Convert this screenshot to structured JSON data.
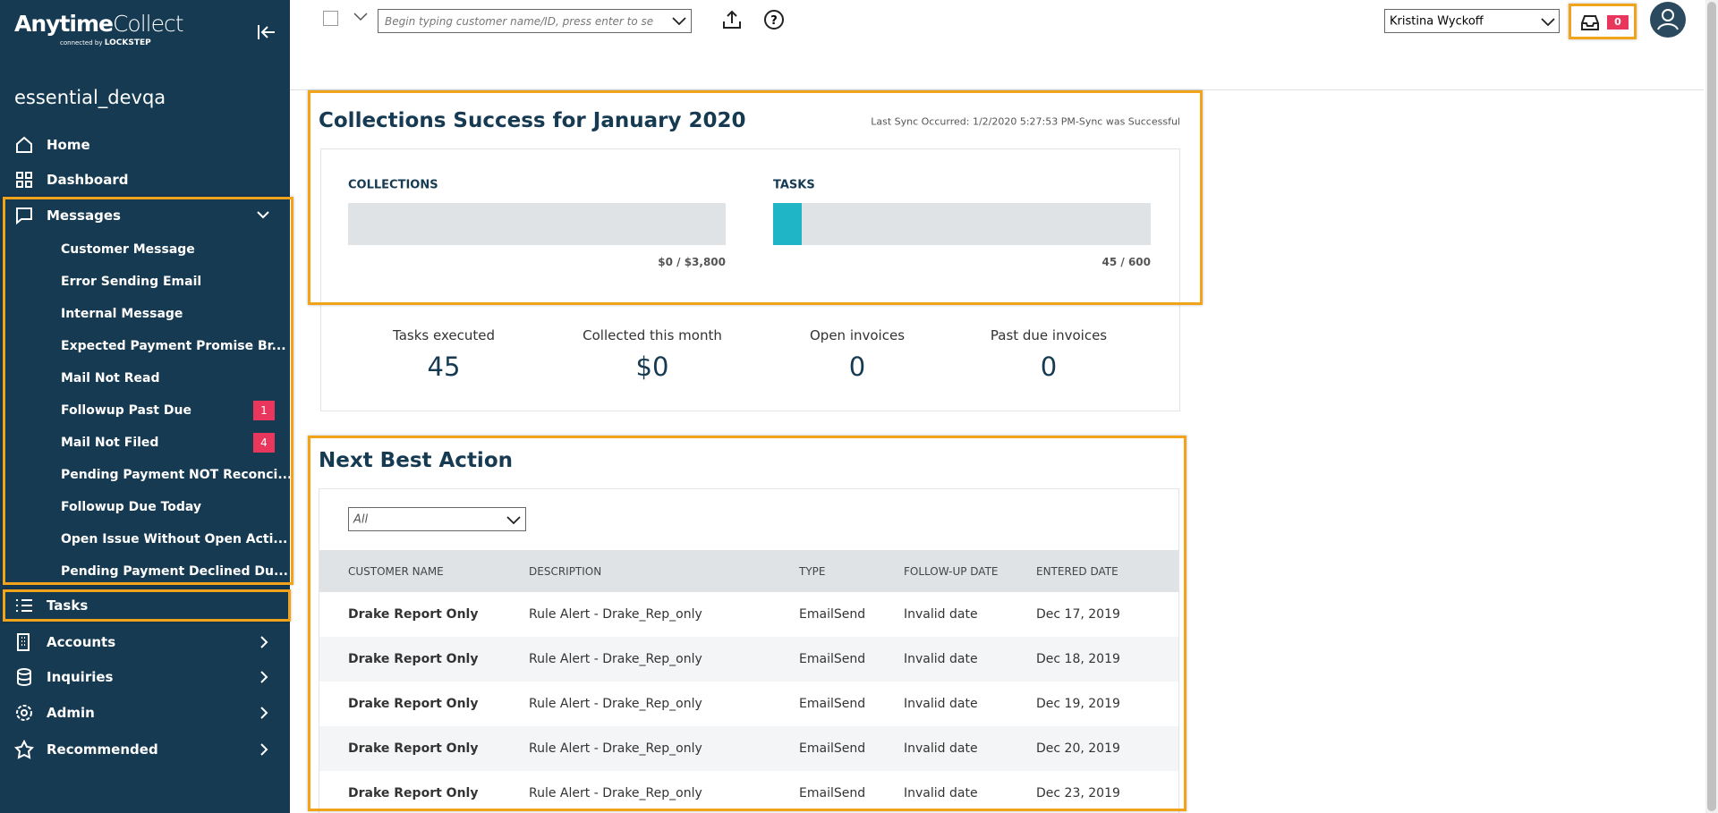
{
  "brand": {
    "title_bold": "Anytime",
    "title_light": "Collect",
    "tagline": "connected by",
    "partner": "LOCKSTEP"
  },
  "org": "essential_devqa",
  "nav": [
    {
      "label": "Home"
    },
    {
      "label": "Dashboard"
    },
    {
      "label": "Messages",
      "expanded": true,
      "children": [
        {
          "label": "Customer Message"
        },
        {
          "label": "Error Sending Email"
        },
        {
          "label": "Internal Message"
        },
        {
          "label": "Expected Payment Promise Br..."
        },
        {
          "label": "Mail Not Read"
        },
        {
          "label": "Followup Past Due",
          "badge": 1
        },
        {
          "label": "Mail Not Filed",
          "badge": 4
        },
        {
          "label": "Pending Payment NOT Reconci..."
        },
        {
          "label": "Followup Due Today"
        },
        {
          "label": "Open Issue Without Open Acti..."
        },
        {
          "label": "Pending Payment Declined Du..."
        }
      ]
    },
    {
      "label": "Tasks"
    },
    {
      "label": "Accounts",
      "expandable": true
    },
    {
      "label": "Inquiries",
      "expandable": true
    },
    {
      "label": "Admin",
      "expandable": true
    },
    {
      "label": "Recommended",
      "expandable": true
    }
  ],
  "topbar": {
    "search_placeholder": "Begin typing customer name/ID, press enter to se",
    "user": "Kristina Wyckoff",
    "inbox_count": 0
  },
  "summary": {
    "title": "Collections Success for January 2020",
    "sync": "Last Sync Occurred: 1/2/2020 5:27:53 PM-Sync was Successful",
    "progress": [
      {
        "label": "COLLECTIONS",
        "value": 0,
        "max": 3800,
        "text": "$0 / $3,800"
      },
      {
        "label": "TASKS",
        "value": 45,
        "max": 600,
        "text": "45 / 600"
      }
    ],
    "stats": [
      {
        "label": "Tasks executed",
        "value": "45"
      },
      {
        "label": "Collected this month",
        "value": "$0"
      },
      {
        "label": "Open invoices",
        "value": "0"
      },
      {
        "label": "Past due invoices",
        "value": "0"
      }
    ]
  },
  "actions": {
    "title": "Next Best Action",
    "filter": "All",
    "columns": [
      "CUSTOMER NAME",
      "DESCRIPTION",
      "TYPE",
      "FOLLOW-UP DATE",
      "ENTERED DATE"
    ],
    "rows": [
      [
        "Drake Report Only",
        "Rule Alert - Drake_Rep_only",
        "EmailSend",
        "Invalid date",
        "Dec 17, 2019"
      ],
      [
        "Drake Report Only",
        "Rule Alert - Drake_Rep_only",
        "EmailSend",
        "Invalid date",
        "Dec 18, 2019"
      ],
      [
        "Drake Report Only",
        "Rule Alert - Drake_Rep_only",
        "EmailSend",
        "Invalid date",
        "Dec 19, 2019"
      ],
      [
        "Drake Report Only",
        "Rule Alert - Drake_Rep_only",
        "EmailSend",
        "Invalid date",
        "Dec 20, 2019"
      ],
      [
        "Drake Report Only",
        "Rule Alert - Drake_Rep_only",
        "EmailSend",
        "Invalid date",
        "Dec 23, 2019"
      ]
    ]
  }
}
